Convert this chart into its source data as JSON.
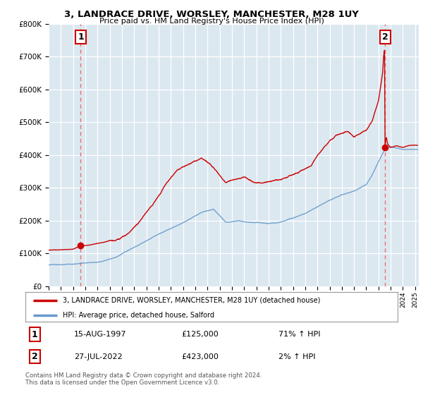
{
  "title": "3, LANDRACE DRIVE, WORSLEY, MANCHESTER, M28 1UY",
  "subtitle": "Price paid vs. HM Land Registry's House Price Index (HPI)",
  "sale1_date": "15-AUG-1997",
  "sale1_price": 125000,
  "sale1_hpi": "71% ↑ HPI",
  "sale1_label": "1",
  "sale2_date": "27-JUL-2022",
  "sale2_price": 423000,
  "sale2_hpi": "2% ↑ HPI",
  "sale2_label": "2",
  "legend_house": "3, LANDRACE DRIVE, WORSLEY, MANCHESTER, M28 1UY (detached house)",
  "legend_hpi": "HPI: Average price, detached house, Salford",
  "footnote": "Contains HM Land Registry data © Crown copyright and database right 2024.\nThis data is licensed under the Open Government Licence v3.0.",
  "house_color": "#cc0000",
  "hpi_color": "#6699cc",
  "plot_bg_color": "#dce8f0",
  "ylim": [
    0,
    800000
  ],
  "xlim_start": 1995.0,
  "xlim_end": 2025.3,
  "sale1_t": 1997.625,
  "sale2_t": 2022.542
}
